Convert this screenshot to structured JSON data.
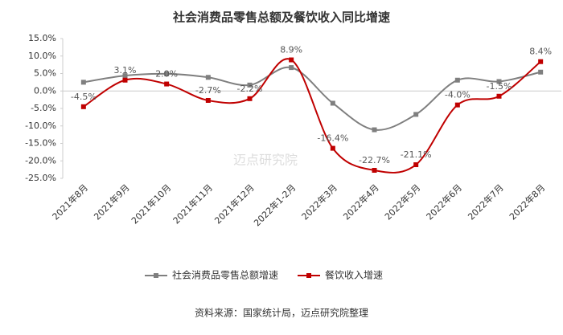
{
  "chart_data": {
    "type": "line",
    "title": "社会消费品零售总额及餐饮收入同比增速",
    "source": "资料来源：国家统计局，迈点研究院整理",
    "watermark": "迈点研究院",
    "categories": [
      "2021年8月",
      "2021年9月",
      "2021年10月",
      "2021年11月",
      "2021年12月",
      "2022年1-2月",
      "2022年3月",
      "2022年4月",
      "2022年5月",
      "2022年6月",
      "2022年7月",
      "2022年8月"
    ],
    "series": [
      {
        "name": "社会消费品零售总额增速",
        "color": "#7f7f7f",
        "values": [
          2.5,
          4.4,
          4.9,
          3.9,
          1.7,
          6.7,
          -3.5,
          -11.1,
          -6.7,
          3.1,
          2.7,
          5.4
        ]
      },
      {
        "name": "餐饮收入增速",
        "color": "#c00000",
        "values": [
          -4.5,
          3.1,
          2.0,
          -2.7,
          -2.2,
          8.9,
          -16.4,
          -22.7,
          -21.1,
          -4.0,
          -1.5,
          8.4
        ],
        "value_labels": [
          "-4.5%",
          "3.1%",
          "2.0%",
          "-2.7%",
          "-2.2%",
          "8.9%",
          "-16.4%",
          "-22.7%",
          "-21.1%",
          "-4.0%",
          "-1.5%",
          "8.4%"
        ]
      }
    ],
    "ylim": [
      -25,
      15
    ],
    "yticks": [
      {
        "value": -25,
        "label": "-25.0%"
      },
      {
        "value": -20,
        "label": "-20.0%"
      },
      {
        "value": -15,
        "label": "-15.0%"
      },
      {
        "value": -10,
        "label": "-10.0%"
      },
      {
        "value": -5,
        "label": "-5.0%"
      },
      {
        "value": 0,
        "label": "0.0%"
      },
      {
        "value": 5,
        "label": "5.0%"
      },
      {
        "value": 10,
        "label": "10.0%"
      },
      {
        "value": 15,
        "label": "15.0%"
      }
    ],
    "legend": "bottom"
  }
}
